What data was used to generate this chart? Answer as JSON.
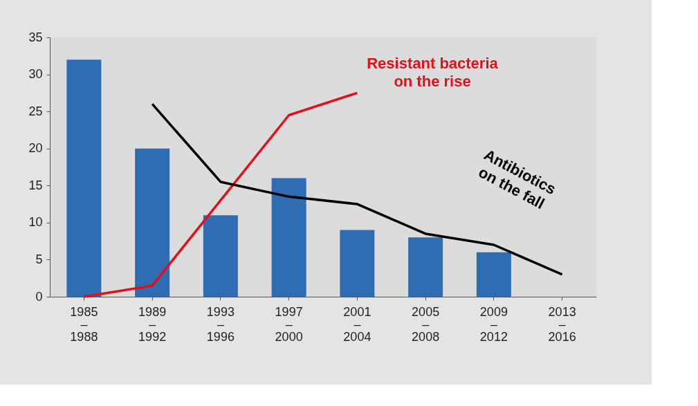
{
  "chart_data": {
    "type": "bar",
    "categories": [
      "1985\n–\n1988",
      "1989\n–\n1992",
      "1993\n–\n1996",
      "1997\n–\n2000",
      "2001\n–\n2004",
      "2005\n–\n2008",
      "2009\n–\n2012",
      "2013\n–\n2016"
    ],
    "series": [
      {
        "color": "#2e6db4",
        "values": [
          32,
          20,
          11,
          16,
          9,
          8,
          6,
          null
        ]
      },
      {
        "type": "line",
        "color": "#e3101b",
        "values": [
          0,
          1.5,
          13,
          24.5,
          27.5,
          null,
          null,
          null
        ]
      },
      {
        "type": "line",
        "color": "#000000",
        "values": [
          null,
          26,
          15.5,
          13.5,
          12.5,
          8.5,
          7,
          3
        ]
      }
    ],
    "ylim": [
      0,
      35
    ],
    "yticks": [
      0,
      5,
      10,
      15,
      20,
      25,
      30,
      35
    ],
    "annotations": [
      "Resistant bacteria\non the rise",
      "Antibiotics\non the fall"
    ]
  }
}
